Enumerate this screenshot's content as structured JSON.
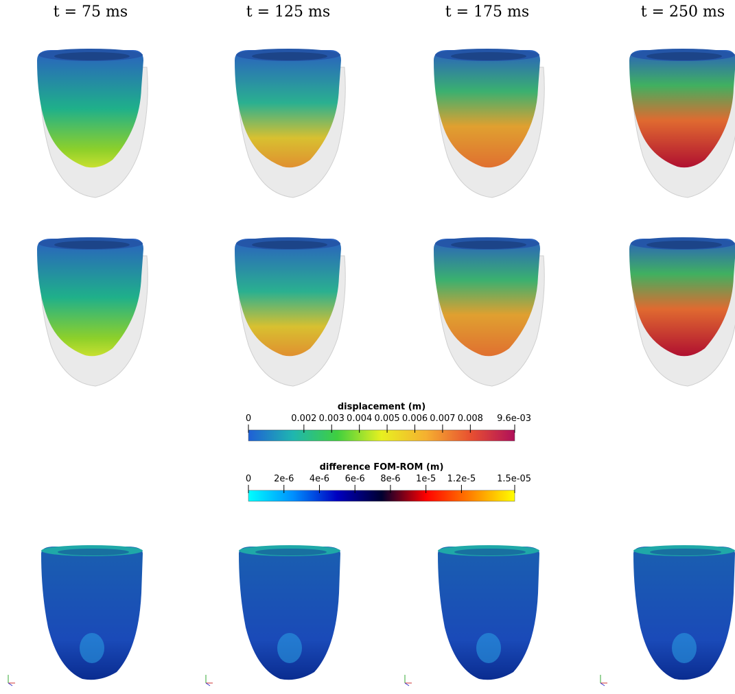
{
  "column_titles": [
    "t = 75 ms",
    "t = 125 ms",
    "t = 175 ms",
    "t = 250 ms"
  ],
  "colorbars": [
    {
      "title": "displacement (m)",
      "lim": [
        0,
        0.0096
      ],
      "ticks": [
        0,
        0.002,
        0.003,
        0.004,
        0.005,
        0.006,
        0.007,
        0.008,
        {
          "value": 0.0096,
          "label": "9.6e-03"
        }
      ],
      "colors": [
        "#1f5fd6",
        "#1fb6b0",
        "#3fcf3f",
        "#e8f020",
        "#f5b030",
        "#e85030",
        "#b0105a"
      ]
    },
    {
      "title": "difference FOM-ROM (m)",
      "lim": [
        0,
        1.5e-05
      ],
      "ticks": [
        0,
        {
          "value": 2e-06,
          "label": "2e-6"
        },
        {
          "value": 4e-06,
          "label": "4e-6"
        },
        {
          "value": 6e-06,
          "label": "6e-6"
        },
        {
          "value": 8e-06,
          "label": "8e-6"
        },
        {
          "value": 1e-05,
          "label": "1e-5"
        },
        {
          "value": 1.2e-05,
          "label": "1.2e-5"
        },
        {
          "value": 1.5e-05,
          "label": "1.5e-05"
        }
      ],
      "colors": [
        "#00ffff",
        "#0090ff",
        "#0000c0",
        "#000030",
        "#ff0000",
        "#ff8000",
        "#ffff00"
      ]
    }
  ]
}
